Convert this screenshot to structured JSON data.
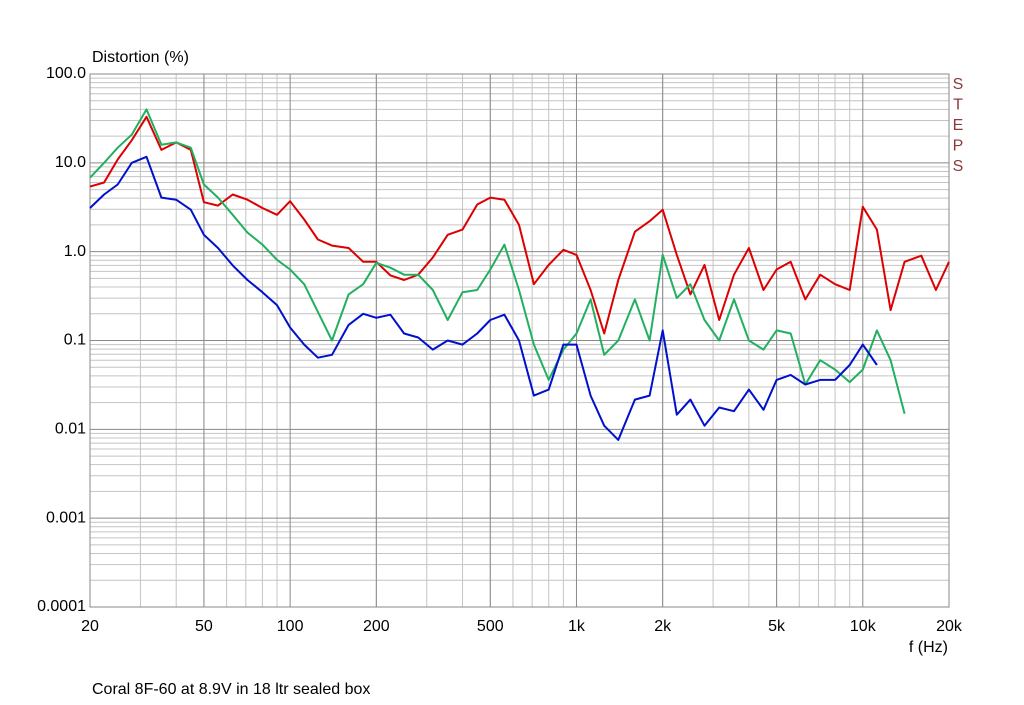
{
  "chart_data": {
    "type": "line",
    "y_label": "Distortion (%)",
    "x_label": "f (Hz)",
    "footnote": "Coral 8F-60 at 8.9V in 18 ltr sealed box",
    "annotation": "STEPS",
    "x_log": true,
    "y_log": true,
    "grid": true,
    "minor_grid": true,
    "xlim": [
      20,
      20000
    ],
    "ylim": [
      0.0001,
      100
    ],
    "xticks": [
      20,
      50,
      100,
      200,
      500,
      {
        "value": 1000,
        "label": "1k"
      },
      {
        "value": 2000,
        "label": "2k"
      },
      {
        "value": 5000,
        "label": "5k"
      },
      {
        "value": 10000,
        "label": "10k"
      },
      {
        "value": 20000,
        "label": "20k"
      }
    ],
    "yticks": [
      0.0001,
      0.001,
      0.01,
      0.1,
      {
        "value": 1,
        "label": "1.0"
      },
      {
        "value": 10,
        "label": "10.0"
      },
      {
        "value": 100,
        "label": "100.0"
      }
    ],
    "x": [
      20,
      22.4,
      25,
      28,
      31.5,
      35.5,
      40,
      45,
      50,
      56,
      63,
      71,
      80,
      90,
      100,
      112,
      125,
      140,
      160,
      180,
      200,
      224,
      250,
      280,
      315,
      355,
      400,
      450,
      500,
      560,
      630,
      710,
      800,
      900,
      1000,
      1120,
      1250,
      1400,
      1600,
      1800,
      2000,
      2240,
      2500,
      2800,
      3150,
      3550,
      4000,
      4500,
      5000,
      5600,
      6300,
      7100,
      8000,
      9000,
      10000,
      11200,
      12500,
      14000,
      16000,
      18000,
      20000
    ],
    "series": [
      {
        "color": "#dd0000",
        "values": [
          5.4,
          6,
          10.9,
          18,
          33,
          14,
          17,
          14,
          3.6,
          3.3,
          4.4,
          3.85,
          3.1,
          2.6,
          3.7,
          2.3,
          1.37,
          1.17,
          1.1,
          0.77,
          0.77,
          0.54,
          0.48,
          0.55,
          0.86,
          1.55,
          1.77,
          3.4,
          4.06,
          3.85,
          2.0,
          0.43,
          0.71,
          1.05,
          0.92,
          0.37,
          0.12,
          0.48,
          1.68,
          2.2,
          2.97,
          0.92,
          0.33,
          0.71,
          0.17,
          0.55,
          1.1,
          0.37,
          0.63,
          0.77,
          0.29,
          0.55,
          0.43,
          0.37,
          3.2,
          1.77,
          0.22,
          0.77,
          0.9,
          0.37,
          0.77
        ]
      },
      {
        "color": "#22b060",
        "values": [
          6.8,
          10,
          14.8,
          20.8,
          40,
          16,
          17,
          14.8,
          5.7,
          4.06,
          2.6,
          1.64,
          1.2,
          0.81,
          0.63,
          0.43,
          0.21,
          0.1,
          0.33,
          0.43,
          0.75,
          0.66,
          0.55,
          0.55,
          0.37,
          0.17,
          0.35,
          0.37,
          0.63,
          1.2,
          0.37,
          0.09,
          0.036,
          0.079,
          0.12,
          0.29,
          0.069,
          0.1,
          0.29,
          0.1,
          0.92,
          0.3,
          0.43,
          0.17,
          0.1,
          0.29,
          0.1,
          0.079,
          0.13,
          0.12,
          0.032,
          0.06,
          0.047,
          0.034,
          0.047,
          0.13,
          0.06,
          0.015,
          null,
          null,
          null
        ]
      },
      {
        "color": "#0010cc",
        "values": [
          3.1,
          4.4,
          5.7,
          10,
          11.7,
          4.06,
          3.85,
          2.97,
          1.55,
          1.1,
          0.7,
          0.48,
          0.35,
          0.25,
          0.14,
          0.09,
          0.064,
          0.069,
          0.15,
          0.2,
          0.18,
          0.195,
          0.12,
          0.108,
          0.079,
          0.1,
          0.09,
          0.12,
          0.17,
          0.195,
          0.1,
          0.024,
          0.028,
          0.09,
          0.09,
          0.024,
          0.011,
          0.0076,
          0.0216,
          0.024,
          0.13,
          0.0146,
          0.0216,
          0.011,
          0.0176,
          0.016,
          0.028,
          0.0166,
          0.036,
          0.041,
          0.032,
          0.036,
          0.036,
          0.053,
          0.09,
          0.053,
          null,
          null,
          null,
          null,
          null
        ]
      }
    ]
  }
}
